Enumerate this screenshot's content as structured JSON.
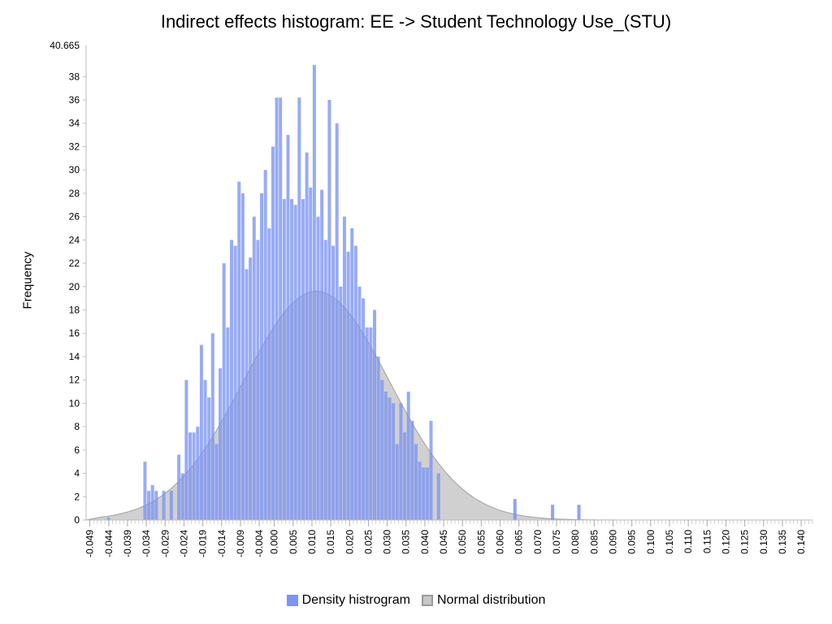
{
  "chart_data": {
    "type": "bar",
    "title": "Indirect effects histogram: EE -> Student Technology Use_(STU)",
    "ylabel": "Frequency",
    "xlabel": "",
    "ylim": [
      0,
      40.665
    ],
    "ymax_label": "40.665",
    "yticks": [
      0,
      2,
      4,
      6,
      8,
      10,
      12,
      14,
      16,
      18,
      20,
      22,
      24,
      26,
      28,
      30,
      32,
      34,
      36,
      38
    ],
    "xlim": [
      -0.05,
      0.143
    ],
    "xticks": [
      "-0.049",
      "-0.044",
      "-0.039",
      "-0.034",
      "-0.029",
      "-0.024",
      "-0.019",
      "-0.014",
      "-0.009",
      "-0.004",
      "0.000",
      "0.005",
      "0.010",
      "0.015",
      "0.020",
      "0.025",
      "0.030",
      "0.035",
      "0.040",
      "0.045",
      "0.050",
      "0.055",
      "0.060",
      "0.065",
      "0.070",
      "0.075",
      "0.080",
      "0.085",
      "0.090",
      "0.095",
      "0.100",
      "0.105",
      "0.110",
      "0.115",
      "0.120",
      "0.125",
      "0.130",
      "0.135",
      "0.140"
    ],
    "legend_position": "bottom",
    "grid": false,
    "series": [
      {
        "name": "Density histrogram",
        "color": "#7b93f4",
        "bin_start": -0.0348,
        "bin_width": 0.001,
        "values": [
          5,
          2.5,
          3,
          2.5,
          0,
          2.5,
          0,
          2.5,
          0,
          5.6,
          4,
          12,
          7.5,
          7.5,
          8,
          15,
          12,
          10.5,
          16,
          6.5,
          13,
          22,
          16.5,
          24,
          23.5,
          29,
          28,
          21.5,
          22.5,
          26,
          24,
          28,
          30,
          25,
          32,
          36.2,
          36.2,
          27.5,
          33,
          27.5,
          27,
          36.2,
          27.5,
          31.5,
          28.5,
          39,
          26,
          28.3,
          24,
          36,
          23.5,
          34,
          20,
          26,
          23,
          25,
          23.5,
          20,
          19,
          16.5,
          16.5,
          18,
          14,
          12,
          11,
          10.5,
          10,
          6.5,
          10,
          7.5,
          11,
          8.5,
          6.5,
          5,
          4.5,
          4.5,
          8.5,
          0,
          4,
          0,
          0,
          0,
          0,
          0,
          0,
          0,
          0,
          0,
          0,
          0,
          0,
          0,
          0,
          0,
          0,
          0,
          0,
          0,
          0,
          0,
          0,
          0,
          0,
          0,
          0,
          0,
          0,
          0,
          0,
          0,
          0,
          0,
          0,
          0,
          0,
          0
        ]
      },
      {
        "name": "Normal distribution",
        "color": "#c8c8c8",
        "distribution": "normal",
        "mean": 0.0112,
        "sd": 0.0194,
        "peak": 19.6
      }
    ],
    "outliers": [
      {
        "x": -0.0445,
        "value": 0.2
      },
      {
        "x": 0.0635,
        "value": 1.8
      },
      {
        "x": 0.0735,
        "value": 1.3
      },
      {
        "x": 0.0805,
        "value": 1.3
      }
    ]
  }
}
